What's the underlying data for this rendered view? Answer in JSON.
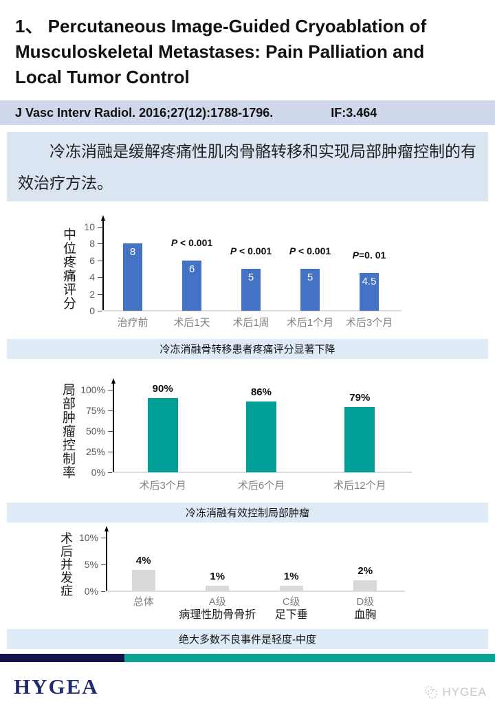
{
  "slide": {
    "title": "1、 Percutaneous Image-Guided Cryoablation of Musculoskeletal Metastases: Pain Palliation and Local Tumor Control",
    "citation": "J Vasc Interv Radiol. 2016;27(12):1788-1796.",
    "impact_factor": "IF:3.464",
    "summary": "冷冻消融是缓解疼痛性肌肉骨骼转移和实现局部肿瘤控制的有效治疗方法。",
    "captions": {
      "pain": "冷冻消融骨转移患者疼痛评分显著下降",
      "tumor": "冷冻消融有效控制局部肿瘤",
      "adverse": "绝大多数不良事件是轻度-中度"
    },
    "footer_logo": "HYGEA",
    "watermark": "HYGEA"
  },
  "colors": {
    "citation_bg": "#CFD8EA",
    "summary_bg": "#DAE5F1",
    "caption_bg": "#DEEAF6",
    "divider_navy": "#14124A",
    "divider_teal": "#0AA396",
    "logo_navy": "#232C70"
  },
  "chart_data": [
    {
      "type": "bar",
      "ylabel": "中位疼痛评分",
      "categories": [
        "治疗前",
        "术后1天",
        "术后1周",
        "术后1个月",
        "术后3个月"
      ],
      "values": [
        8,
        6,
        5,
        5,
        4.5
      ],
      "bar_labels": [
        "8",
        "6",
        "5",
        "5",
        "4.5"
      ],
      "annotations": [
        "",
        "P < 0.001",
        "P < 0.001",
        "P < 0.001",
        "P=0. 01"
      ],
      "ylim": [
        0,
        10
      ],
      "yticks": [
        "10",
        "8",
        "6",
        "4",
        "2",
        "0"
      ],
      "bar_color": "#4472C4",
      "label_position": "inside",
      "grid": false,
      "legend": "none"
    },
    {
      "type": "bar",
      "ylabel": "局部肿瘤控制率",
      "categories": [
        "术后3个月",
        "术后6个月",
        "术后12个月"
      ],
      "values": [
        90,
        86,
        79
      ],
      "bar_labels": [
        "90%",
        "86%",
        "79%"
      ],
      "ylim": [
        0,
        100
      ],
      "yticks": [
        "100%",
        "75%",
        "50%",
        "25%",
        "0%"
      ],
      "bar_color": "#00A099",
      "label_position": "above",
      "grid": false,
      "legend": "none"
    },
    {
      "type": "bar",
      "ylabel": "术后并发症",
      "categories": [
        "总体",
        "A级",
        "C级",
        "D级"
      ],
      "sub_categories": [
        "",
        "病理性肋骨骨折",
        "足下垂",
        "血胸"
      ],
      "values": [
        4,
        1,
        1,
        2
      ],
      "bar_labels": [
        "4%",
        "1%",
        "1%",
        "2%"
      ],
      "ylim": [
        0,
        10
      ],
      "yticks": [
        "10%",
        "5%",
        "0%"
      ],
      "bar_color": "#D9D9D9",
      "label_position": "above",
      "grid": false,
      "legend": "none"
    }
  ]
}
